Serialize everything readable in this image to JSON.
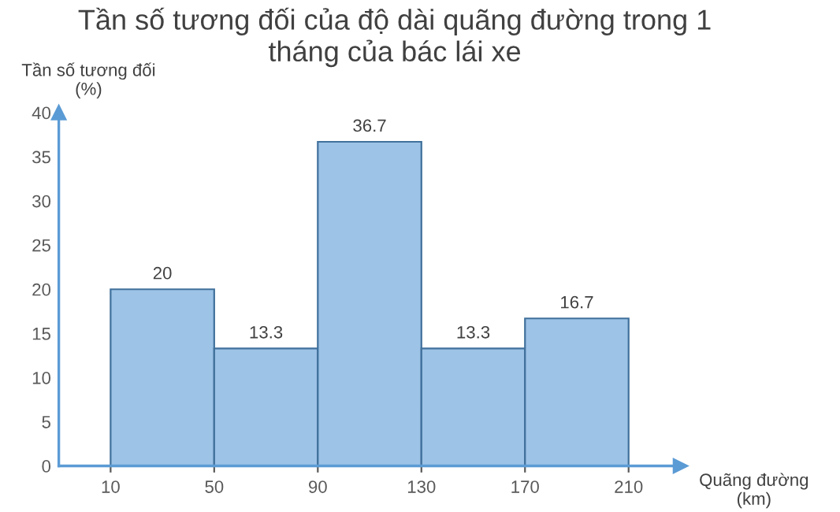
{
  "chart_data": {
    "type": "histogram",
    "title": "Tần số tương đối của độ dài quãng đường trong 1\ntháng của bác lái xe",
    "ylabel": "Tần số tương đối\n(%)",
    "xlabel": "Quãng đường\n(km)",
    "bins": [
      10,
      50,
      90,
      130,
      170,
      210
    ],
    "values": [
      20,
      13.3,
      36.7,
      13.3,
      16.7
    ],
    "color": "#9dc3e6",
    "data_labels": true,
    "grid": false,
    "legend": false,
    "xlim": [
      -10,
      230
    ],
    "xticks": [
      10,
      50,
      90,
      130,
      170,
      210
    ],
    "ylim": [
      0,
      40
    ],
    "yticks": [
      0,
      5,
      10,
      15,
      20,
      25,
      30,
      35,
      40
    ]
  }
}
